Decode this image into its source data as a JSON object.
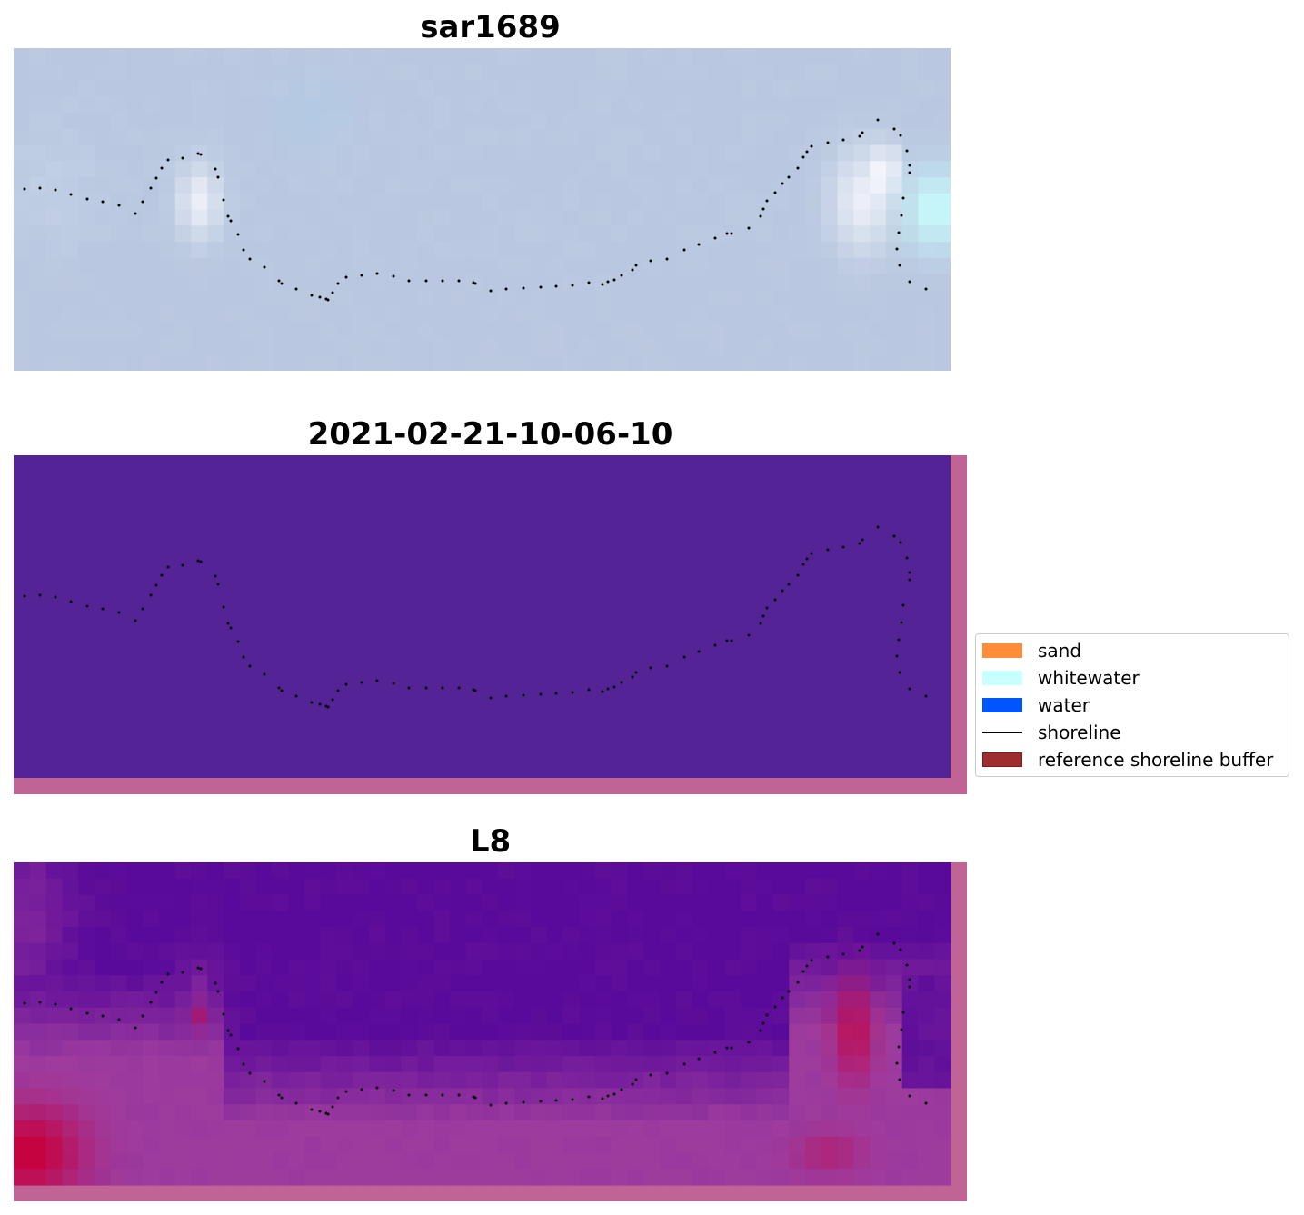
{
  "panels": [
    {
      "id": "sar",
      "title": "sar1689"
    },
    {
      "id": "classified",
      "title": "2021-02-21-10-06-10"
    },
    {
      "id": "l8",
      "title": "L8"
    }
  ],
  "legend": {
    "items": [
      {
        "label": "sand",
        "type": "patch",
        "color": "#ff8c3a"
      },
      {
        "label": "whitewater",
        "type": "patch",
        "color": "#c8ffff"
      },
      {
        "label": "water",
        "type": "patch",
        "color": "#0055ff"
      },
      {
        "label": "shoreline",
        "type": "line",
        "color": "#000000"
      },
      {
        "label": "reference shoreline buffer",
        "type": "patch",
        "color": "#9e2e2e"
      }
    ]
  },
  "colors": {
    "sar_base": "#b9c8e0",
    "classified_fill": "#542396",
    "buffer_border": "#bf6494",
    "l8_dark": "#5a0a9a",
    "l8_mid": "#9e3c9e",
    "l8_hot": "#c8003c",
    "shoreline": "#000000"
  }
}
